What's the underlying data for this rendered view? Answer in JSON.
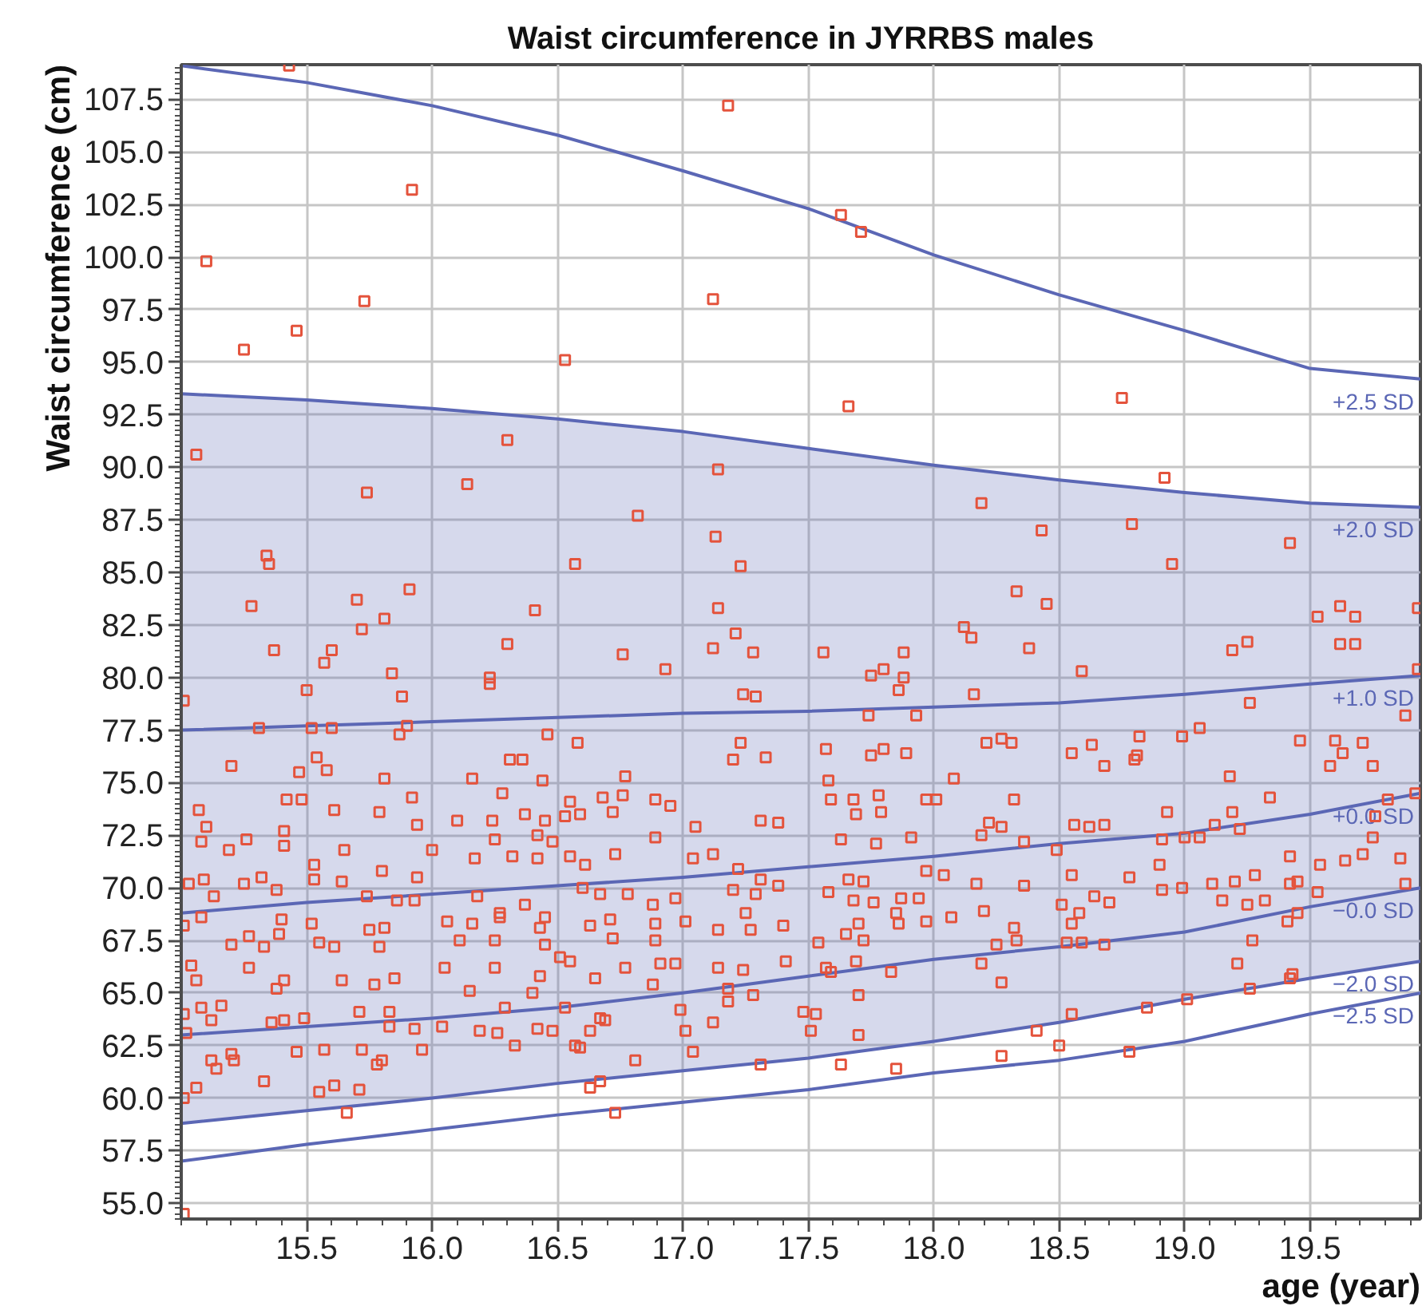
{
  "chart_data": {
    "type": "scatter",
    "title": "Waist circumference in JYRRBS males",
    "xlabel": "age (year)",
    "ylabel": "Waist circumference (cm)",
    "xlim": [
      15.0,
      19.94
    ],
    "ylim": [
      54.25,
      109.15
    ],
    "xticks": [
      15.5,
      {
        "value": 16,
        "label": "16.0"
      },
      16.5,
      {
        "value": 17,
        "label": "17.0"
      },
      17.5,
      {
        "value": 18,
        "label": "18.0"
      },
      18.5,
      {
        "value": 19,
        "label": "19.0"
      },
      19.5
    ],
    "yticks": [
      {
        "value": 55,
        "label": "55.0"
      },
      {
        "value": 57.5,
        "label": "57.5"
      },
      {
        "value": 60,
        "label": "60.0"
      },
      {
        "value": 62.5,
        "label": "62.5"
      },
      {
        "value": 65,
        "label": "65.0"
      },
      {
        "value": 67.5,
        "label": "67.5"
      },
      {
        "value": 70,
        "label": "70.0"
      },
      {
        "value": 72.5,
        "label": "72.5"
      },
      {
        "value": 75,
        "label": "75.0"
      },
      {
        "value": 77.5,
        "label": "77.5"
      },
      {
        "value": 80,
        "label": "80.0"
      },
      {
        "value": 82.5,
        "label": "82.5"
      },
      {
        "value": 85,
        "label": "85.0"
      },
      {
        "value": 87.5,
        "label": "87.5"
      },
      {
        "value": 90,
        "label": "90.0"
      },
      {
        "value": 92.5,
        "label": "92.5"
      },
      {
        "value": 95,
        "label": "95.0"
      },
      {
        "value": 97.5,
        "label": "97.5"
      },
      {
        "value": 100,
        "label": "100.0"
      },
      {
        "value": 102.5,
        "label": "102.5"
      },
      {
        "value": 105,
        "label": "105.0"
      },
      {
        "value": 107.5,
        "label": "107.5"
      }
    ],
    "grid": true,
    "x": [
      15.0,
      15.5,
      16.0,
      16.5,
      17.0,
      17.5,
      18.0,
      18.5,
      19.0,
      19.5,
      19.94
    ],
    "series": [
      {
        "name": "+2.5 SD",
        "type": "line",
        "color": "#5b67b5",
        "values": [
          109.1,
          108.3,
          107.2,
          105.8,
          104.1,
          102.3,
          100.1,
          98.2,
          96.5,
          94.7,
          94.2
        ]
      },
      {
        "name": "+2.0 SD",
        "type": "line",
        "color": "#5b67b5",
        "values": [
          93.5,
          93.2,
          92.8,
          92.3,
          91.7,
          90.9,
          90.1,
          89.4,
          88.8,
          88.3,
          88.1
        ]
      },
      {
        "name": "+1.0 SD",
        "type": "line",
        "color": "#5b67b5",
        "values": [
          77.5,
          77.7,
          77.9,
          78.1,
          78.3,
          78.4,
          78.6,
          78.8,
          79.2,
          79.7,
          80.1
        ]
      },
      {
        "name": "+0.0 SD",
        "type": "line",
        "color": "#5b67b5",
        "values": [
          68.8,
          69.3,
          69.7,
          70.1,
          70.5,
          71.0,
          71.5,
          72.1,
          72.6,
          73.5,
          74.5
        ],
        "lower": [
          58.8,
          59.4,
          60.0,
          60.7,
          61.3,
          61.9,
          62.7,
          63.6,
          64.7,
          65.7,
          66.5
        ],
        "upper": [
          93.5,
          93.2,
          92.8,
          92.3,
          91.7,
          90.9,
          90.1,
          89.4,
          88.8,
          88.3,
          88.1
        ]
      },
      {
        "name": "−0.0 SD",
        "type": "line",
        "color": "#5b67b5",
        "values": [
          63.0,
          63.4,
          63.8,
          64.3,
          65.0,
          65.8,
          66.6,
          67.2,
          67.9,
          69.1,
          70.0
        ]
      },
      {
        "name": "−2.0 SD",
        "type": "line",
        "color": "#5b67b5",
        "values": [
          58.8,
          59.4,
          60.0,
          60.7,
          61.3,
          61.9,
          62.7,
          63.6,
          64.7,
          65.7,
          66.5
        ]
      },
      {
        "name": "−2.5 SD",
        "type": "line",
        "color": "#5b67b5",
        "values": [
          57.0,
          57.8,
          58.5,
          59.2,
          59.8,
          60.4,
          61.2,
          61.8,
          62.7,
          64.0,
          65.0
        ]
      },
      {
        "color": "#e4533c",
        "marker": "square",
        "x": [
          15.43,
          17.18,
          15.92,
          15.1,
          15.73,
          17.12,
          15.46,
          15.25,
          16.53,
          16.3,
          15.06,
          17.63,
          17.71,
          17.66,
          18.75,
          17.14,
          15.74,
          16.14,
          16.82,
          17.13,
          17.23,
          15.34,
          15.35,
          16.57,
          15.28,
          15.91,
          15.7,
          16.41,
          15.81,
          17.14,
          15.72,
          17.21,
          17.12,
          17.28,
          15.37,
          16.3,
          15.6,
          15.57,
          16.76,
          16.93,
          15.84,
          16.23,
          16.23,
          15.5,
          15.88,
          17.24,
          17.29,
          15.01,
          15.31,
          15.52,
          15.6,
          15.9,
          15.87,
          16.46,
          16.58,
          17.23,
          17.2,
          17.33,
          15.2,
          15.54,
          15.47,
          15.58,
          16.31,
          16.36,
          15.81,
          16.16,
          16.44,
          16.77,
          16.28,
          15.42,
          15.48,
          15.92,
          16.68,
          16.76,
          16.89,
          16.95,
          16.55,
          15.07,
          15.61,
          15.79,
          16.37,
          16.72,
          17.31,
          17.38,
          17.05,
          16.1,
          16.24,
          16.45,
          16.53,
          16.59,
          15.94,
          18.92,
          18.19,
          18.43,
          18.79,
          19.42,
          18.95,
          18.33,
          18.45,
          19.53,
          19.62,
          19.68,
          19.93,
          18.12,
          18.15,
          18.38,
          17.56,
          17.88,
          19.19,
          19.25,
          19.62,
          19.68,
          19.93,
          17.75,
          17.8,
          17.88,
          17.86,
          18.59,
          18.16,
          19.26,
          19.88,
          17.74,
          17.93,
          19.06,
          18.99,
          18.82,
          17.57,
          17.8,
          17.75,
          17.89,
          18.21,
          18.27,
          18.31,
          18.55,
          18.63,
          18.68,
          18.81,
          18.8,
          19.46,
          19.6,
          19.71,
          19.63,
          19.58,
          19.75,
          19.18,
          17.58,
          18.08,
          17.59,
          17.68,
          17.78,
          17.69,
          17.79,
          17.97,
          18.01,
          18.32,
          18.22,
          18.27,
          18.56,
          18.62,
          18.68,
          18.93,
          19.19,
          19.34,
          19.81,
          19.92,
          19.76,
          19.12,
          15.1,
          15.08,
          15.19,
          15.26,
          15.41,
          15.41,
          15.65,
          15.53,
          15.03,
          15.09,
          15.13,
          15.25,
          15.32,
          15.38,
          15.53,
          15.64,
          15.8,
          15.94,
          15.74,
          15.86,
          15.93,
          16.0,
          16.17,
          16.32,
          16.42,
          16.55,
          16.73,
          16.61,
          16.25,
          16.42,
          16.48,
          16.89,
          17.04,
          17.12,
          17.22,
          17.31,
          17.38,
          17.2,
          17.29,
          16.18,
          16.27,
          16.37,
          16.6,
          16.67,
          16.78,
          16.97,
          16.88,
          15.08,
          15.01,
          15.4,
          15.52,
          15.27,
          15.39,
          15.2,
          15.33,
          15.55,
          15.61,
          15.75,
          15.81,
          15.79,
          16.06,
          16.16,
          16.11,
          16.25,
          16.27,
          16.43,
          16.45,
          16.45,
          16.63,
          16.71,
          16.72,
          16.89,
          16.89,
          17.01,
          17.14,
          17.25,
          17.27,
          17.4,
          15.04,
          15.06,
          15.27,
          15.38,
          15.41,
          15.64,
          15.77,
          15.85,
          16.05,
          16.15,
          16.25,
          16.43,
          16.4,
          16.51,
          16.55,
          16.65,
          16.77,
          16.91,
          16.97,
          16.88,
          17.14,
          17.24,
          17.41,
          17.18,
          17.28,
          17.18,
          15.08,
          15.16,
          15.01,
          15.12,
          15.02,
          15.36,
          15.41,
          15.49,
          15.71,
          15.83,
          15.83,
          15.93,
          16.04,
          16.19,
          16.26,
          16.29,
          16.42,
          16.48,
          16.53,
          16.63,
          16.67,
          16.69,
          16.99,
          17.01,
          17.12,
          15.12,
          15.14,
          15.2,
          15.21,
          15.01,
          15.06,
          15.33,
          15.46,
          15.57,
          15.72,
          15.78,
          15.8,
          15.96,
          15.55,
          15.61,
          15.71,
          15.66,
          16.33,
          16.57,
          16.59,
          16.81,
          17.04,
          17.31,
          16.63,
          16.67,
          16.73,
          15.01,
          17.63,
          17.77,
          17.91,
          18.19,
          18.36,
          18.49,
          18.91,
          19.0,
          19.06,
          19.22,
          19.75,
          19.71,
          19.86,
          19.42,
          19.54,
          19.64,
          18.9,
          17.66,
          17.72,
          17.97,
          18.04,
          18.17,
          18.36,
          18.55,
          18.78,
          18.91,
          18.99,
          19.11,
          19.2,
          19.28,
          19.42,
          19.45,
          19.53,
          19.88,
          17.58,
          17.68,
          17.76,
          17.87,
          17.94,
          18.07,
          18.2,
          17.85,
          17.86,
          17.97,
          17.7,
          17.65,
          17.72,
          17.54,
          18.32,
          18.33,
          18.25,
          18.51,
          18.58,
          18.64,
          18.7,
          18.55,
          18.53,
          18.59,
          18.68,
          19.15,
          19.25,
          19.32,
          19.41,
          19.45,
          19.27,
          19.21,
          19.43,
          19.42,
          19.26,
          17.57,
          17.59,
          17.69,
          17.83,
          17.7,
          18.19,
          18.27,
          17.48,
          17.53,
          17.51,
          17.7,
          18.55,
          18.85,
          19.01,
          18.41,
          18.5,
          18.27,
          17.63,
          17.85,
          18.78
        ],
        "values": [
          109.1,
          107.2,
          103.2,
          99.8,
          97.9,
          98.0,
          96.5,
          95.6,
          95.1,
          91.3,
          90.6,
          102.0,
          101.2,
          92.9,
          93.3,
          89.9,
          88.8,
          89.2,
          87.7,
          86.7,
          85.3,
          85.8,
          85.4,
          85.4,
          83.4,
          84.2,
          83.7,
          83.2,
          82.8,
          83.3,
          82.3,
          82.1,
          81.4,
          81.2,
          81.3,
          81.6,
          81.3,
          80.7,
          81.1,
          80.4,
          80.2,
          80.0,
          79.7,
          79.4,
          79.1,
          79.2,
          79.1,
          78.9,
          77.6,
          77.6,
          77.6,
          77.7,
          77.3,
          77.3,
          76.9,
          76.9,
          76.1,
          76.2,
          75.8,
          76.2,
          75.5,
          75.6,
          76.1,
          76.1,
          75.2,
          75.2,
          75.1,
          75.3,
          74.5,
          74.2,
          74.2,
          74.3,
          74.3,
          74.4,
          74.2,
          73.9,
          74.1,
          73.7,
          73.7,
          73.6,
          73.5,
          73.6,
          73.2,
          73.1,
          72.9,
          73.2,
          73.2,
          73.2,
          73.4,
          73.5,
          73.0,
          89.5,
          88.3,
          87.0,
          87.3,
          86.4,
          85.4,
          84.1,
          83.5,
          82.9,
          83.4,
          82.9,
          83.3,
          82.4,
          81.9,
          81.4,
          81.2,
          81.2,
          81.3,
          81.7,
          81.6,
          81.6,
          80.4,
          80.1,
          80.4,
          80.0,
          79.4,
          80.3,
          79.2,
          78.8,
          78.2,
          78.2,
          78.2,
          77.6,
          77.2,
          77.2,
          76.6,
          76.6,
          76.3,
          76.4,
          76.9,
          77.1,
          76.9,
          76.4,
          76.8,
          75.8,
          76.3,
          76.1,
          77.0,
          77.0,
          76.9,
          76.4,
          75.8,
          75.8,
          75.3,
          75.1,
          75.2,
          74.2,
          74.2,
          74.4,
          73.5,
          73.6,
          74.2,
          74.2,
          74.2,
          73.1,
          72.9,
          73.0,
          72.9,
          73.0,
          73.6,
          73.6,
          74.3,
          74.2,
          74.5,
          73.4,
          73.0,
          72.9,
          72.2,
          71.8,
          72.3,
          72.7,
          72.0,
          71.8,
          71.1,
          70.2,
          70.4,
          69.6,
          70.2,
          70.5,
          69.9,
          70.4,
          70.3,
          70.8,
          70.5,
          69.6,
          69.4,
          69.4,
          71.8,
          71.4,
          71.5,
          71.4,
          71.5,
          71.6,
          71.1,
          72.3,
          72.5,
          72.2,
          72.4,
          71.4,
          71.6,
          70.9,
          70.4,
          70.1,
          69.9,
          69.7,
          69.6,
          68.8,
          69.2,
          70.0,
          69.7,
          69.7,
          69.5,
          69.2,
          68.6,
          68.2,
          68.5,
          68.3,
          67.7,
          67.8,
          67.3,
          67.2,
          67.4,
          67.2,
          68.0,
          68.1,
          67.2,
          68.4,
          68.3,
          67.5,
          67.5,
          68.6,
          68.1,
          67.3,
          68.6,
          68.2,
          68.5,
          67.6,
          67.5,
          68.3,
          68.4,
          68.0,
          68.8,
          68.0,
          68.2,
          66.3,
          65.6,
          66.2,
          65.2,
          65.6,
          65.6,
          65.4,
          65.7,
          66.2,
          65.1,
          66.2,
          65.8,
          65.0,
          66.7,
          66.5,
          65.7,
          66.2,
          66.4,
          66.4,
          65.4,
          66.2,
          66.1,
          66.5,
          65.2,
          64.9,
          64.6,
          64.3,
          64.4,
          64.0,
          63.7,
          63.1,
          63.6,
          63.7,
          63.8,
          64.1,
          64.1,
          63.4,
          63.3,
          63.4,
          63.2,
          63.1,
          64.3,
          63.3,
          63.2,
          64.3,
          63.2,
          63.8,
          63.7,
          64.2,
          63.2,
          63.6,
          61.8,
          61.4,
          62.1,
          61.8,
          60.0,
          60.5,
          60.8,
          62.2,
          62.3,
          62.3,
          61.6,
          61.8,
          62.3,
          60.3,
          60.6,
          60.4,
          59.3,
          62.5,
          62.5,
          62.4,
          61.8,
          62.2,
          61.6,
          60.5,
          60.8,
          59.3,
          54.5,
          72.3,
          72.1,
          72.4,
          72.5,
          72.2,
          71.8,
          72.3,
          72.4,
          72.4,
          72.8,
          72.4,
          71.6,
          71.4,
          71.5,
          71.1,
          71.3,
          71.1,
          70.4,
          70.3,
          70.8,
          70.6,
          70.2,
          70.1,
          70.6,
          70.5,
          69.9,
          70.0,
          70.2,
          70.3,
          70.6,
          70.2,
          70.3,
          69.8,
          70.2,
          69.8,
          69.4,
          69.3,
          69.5,
          69.5,
          68.6,
          68.9,
          68.8,
          68.3,
          68.4,
          68.3,
          67.8,
          67.5,
          67.4,
          68.1,
          67.5,
          67.3,
          69.2,
          68.8,
          69.6,
          69.3,
          68.3,
          67.4,
          67.4,
          67.3,
          69.4,
          69.2,
          69.4,
          68.4,
          68.8,
          67.5,
          66.4,
          65.9,
          65.7,
          65.2,
          66.2,
          66.0,
          66.5,
          66.0,
          64.9,
          66.4,
          65.5,
          64.1,
          64.0,
          63.2,
          63.0,
          64.0,
          64.3,
          64.7,
          63.2,
          62.5,
          62.0,
          61.6,
          61.4,
          62.2
        ]
      }
    ]
  }
}
